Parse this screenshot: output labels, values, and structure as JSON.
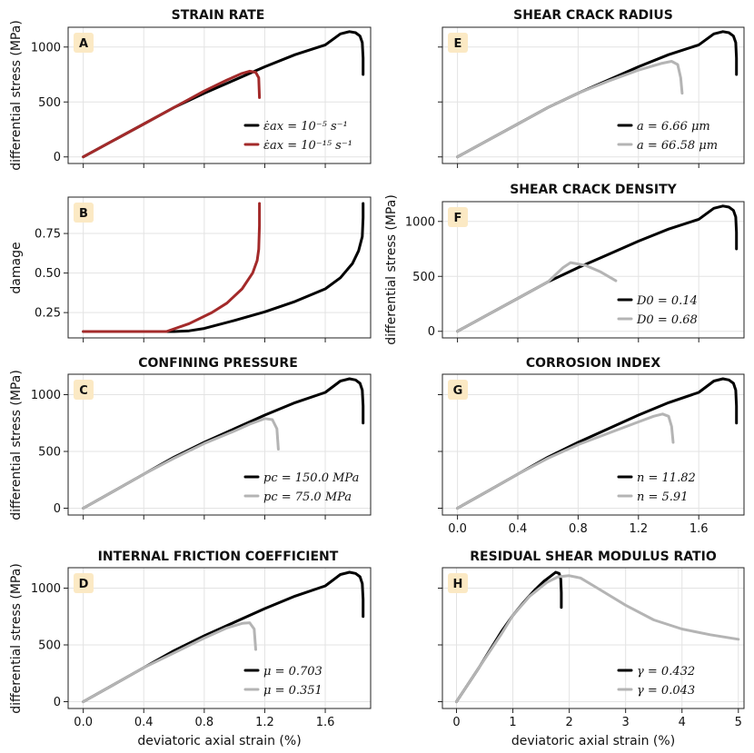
{
  "figure": {
    "colors": {
      "black": "#000000",
      "red": "#a32a2a",
      "gray": "#b4b4b4",
      "badge": "#fbe9c4"
    },
    "shared_xlabel": "deviatoric axial strain (%)",
    "shared_ylabel_stress": "differential stress (MPa)",
    "shared_ylabel_damage": "damage"
  },
  "chart_data": [
    {
      "id": "A",
      "type": "line",
      "title": "STRAIN RATE",
      "badge": "A",
      "ylabel": "differential stress (MPa)",
      "xlabel": "",
      "xlim": [
        -0.1,
        1.9
      ],
      "ylim": [
        -60,
        1180
      ],
      "xticks": [
        0,
        0.4,
        0.8,
        1.2,
        1.6
      ],
      "xtick_labels": [],
      "yticks": [
        0,
        500,
        1000
      ],
      "ytick_labels": [
        "0",
        "500",
        "1000"
      ],
      "series": [
        {
          "name": "ε̇ax = 10⁻⁵ s⁻¹",
          "color": "#000000",
          "x": [
            0,
            0.2,
            0.4,
            0.6,
            0.8,
            1.0,
            1.2,
            1.4,
            1.6,
            1.7,
            1.76,
            1.8,
            1.83,
            1.845,
            1.85,
            1.85
          ],
          "y": [
            0,
            150,
            300,
            450,
            580,
            700,
            820,
            930,
            1020,
            1120,
            1140,
            1130,
            1100,
            1040,
            900,
            750
          ]
        },
        {
          "name": "ε̇ax = 10⁻¹⁵ s⁻¹",
          "color": "#a32a2a",
          "x": [
            0,
            0.2,
            0.4,
            0.6,
            0.8,
            0.95,
            1.05,
            1.1,
            1.14,
            1.16,
            1.165
          ],
          "y": [
            0,
            150,
            300,
            450,
            600,
            700,
            760,
            780,
            770,
            720,
            540
          ]
        }
      ]
    },
    {
      "id": "B",
      "type": "line",
      "title": "",
      "badge": "B",
      "ylabel": "damage",
      "xlabel": "",
      "xlim": [
        -0.1,
        1.9
      ],
      "ylim": [
        0.09,
        0.98
      ],
      "xticks": [
        0,
        0.4,
        0.8,
        1.2,
        1.6
      ],
      "xtick_labels": [],
      "yticks": [
        0.25,
        0.5,
        0.75
      ],
      "ytick_labels": [
        "0.25",
        "0.50",
        "0.75"
      ],
      "series": [
        {
          "name": "ε̇ax = 10⁻⁵ s⁻¹",
          "color": "#000000",
          "x": [
            0,
            0.4,
            0.6,
            0.7,
            0.8,
            1.0,
            1.2,
            1.4,
            1.6,
            1.7,
            1.78,
            1.82,
            1.845,
            1.85,
            1.85
          ],
          "y": [
            0.13,
            0.13,
            0.13,
            0.135,
            0.15,
            0.2,
            0.255,
            0.32,
            0.4,
            0.47,
            0.56,
            0.64,
            0.73,
            0.85,
            0.94
          ]
        },
        {
          "name": "ε̇ax = 10⁻¹⁵ s⁻¹",
          "color": "#a32a2a",
          "x": [
            0,
            0.3,
            0.55,
            0.7,
            0.85,
            0.95,
            1.05,
            1.12,
            1.15,
            1.16,
            1.165,
            1.165
          ],
          "y": [
            0.13,
            0.13,
            0.13,
            0.18,
            0.25,
            0.31,
            0.4,
            0.5,
            0.58,
            0.65,
            0.8,
            0.94
          ]
        }
      ]
    },
    {
      "id": "C",
      "type": "line",
      "title": "CONFINING PRESSURE",
      "badge": "C",
      "ylabel": "differential stress (MPa)",
      "xlabel": "",
      "xlim": [
        -0.1,
        1.9
      ],
      "ylim": [
        -60,
        1180
      ],
      "xticks": [
        0,
        0.4,
        0.8,
        1.2,
        1.6
      ],
      "xtick_labels": [],
      "yticks": [
        0,
        500,
        1000
      ],
      "ytick_labels": [
        "0",
        "500",
        "1000"
      ],
      "series": [
        {
          "name": "pc = 150.0 MPa",
          "color": "#000000",
          "x": [
            0,
            0.2,
            0.4,
            0.6,
            0.8,
            1.0,
            1.2,
            1.4,
            1.6,
            1.7,
            1.76,
            1.8,
            1.83,
            1.845,
            1.85,
            1.85
          ],
          "y": [
            0,
            150,
            300,
            450,
            580,
            700,
            820,
            930,
            1020,
            1120,
            1140,
            1130,
            1100,
            1040,
            900,
            750
          ]
        },
        {
          "name": "pc = 75.0 MPa",
          "color": "#b4b4b4",
          "x": [
            0,
            0.2,
            0.4,
            0.6,
            0.8,
            1.0,
            1.1,
            1.2,
            1.25,
            1.28,
            1.29
          ],
          "y": [
            0,
            150,
            300,
            440,
            570,
            680,
            740,
            790,
            780,
            700,
            520
          ]
        }
      ]
    },
    {
      "id": "D",
      "type": "line",
      "title": "INTERNAL FRICTION COEFFICIENT",
      "badge": "D",
      "ylabel": "differential stress (MPa)",
      "xlabel": "deviatoric axial strain (%)",
      "xlim": [
        -0.1,
        1.9
      ],
      "ylim": [
        -60,
        1180
      ],
      "xticks": [
        0,
        0.4,
        0.8,
        1.2,
        1.6
      ],
      "xtick_labels": [
        "0.0",
        "0.4",
        "0.8",
        "1.2",
        "1.6"
      ],
      "yticks": [
        0,
        500,
        1000
      ],
      "ytick_labels": [
        "0",
        "500",
        "1000"
      ],
      "series": [
        {
          "name": "μ = 0.703",
          "color": "#000000",
          "x": [
            0,
            0.2,
            0.4,
            0.6,
            0.8,
            1.0,
            1.2,
            1.4,
            1.6,
            1.7,
            1.76,
            1.8,
            1.83,
            1.845,
            1.85,
            1.85
          ],
          "y": [
            0,
            150,
            300,
            450,
            580,
            700,
            820,
            930,
            1020,
            1120,
            1140,
            1130,
            1100,
            1040,
            900,
            750
          ]
        },
        {
          "name": "μ = 0.351",
          "color": "#b4b4b4",
          "x": [
            0,
            0.2,
            0.4,
            0.6,
            0.8,
            0.95,
            1.05,
            1.1,
            1.13,
            1.14
          ],
          "y": [
            0,
            150,
            300,
            430,
            560,
            650,
            690,
            695,
            640,
            460
          ]
        }
      ]
    },
    {
      "id": "E",
      "type": "line",
      "title": "SHEAR CRACK RADIUS",
      "badge": "E",
      "ylabel": "",
      "xlabel": "",
      "xlim": [
        -0.1,
        1.9
      ],
      "ylim": [
        -60,
        1180
      ],
      "xticks": [
        0,
        0.4,
        0.8,
        1.2,
        1.6
      ],
      "xtick_labels": [],
      "yticks": [
        0,
        500,
        1000
      ],
      "ytick_labels": [],
      "series": [
        {
          "name": "a = 6.66 μm",
          "color": "#000000",
          "x": [
            0,
            0.2,
            0.4,
            0.6,
            0.8,
            1.0,
            1.2,
            1.4,
            1.6,
            1.7,
            1.76,
            1.8,
            1.83,
            1.845,
            1.85,
            1.85
          ],
          "y": [
            0,
            150,
            300,
            450,
            580,
            700,
            820,
            930,
            1020,
            1120,
            1140,
            1130,
            1100,
            1040,
            900,
            750
          ]
        },
        {
          "name": "a = 66.58 μm",
          "color": "#b4b4b4",
          "x": [
            0,
            0.2,
            0.4,
            0.6,
            0.8,
            1.0,
            1.2,
            1.35,
            1.42,
            1.46,
            1.48,
            1.49
          ],
          "y": [
            0,
            150,
            300,
            450,
            580,
            690,
            790,
            850,
            870,
            840,
            720,
            580
          ]
        }
      ]
    },
    {
      "id": "F",
      "type": "line",
      "title": "SHEAR CRACK DENSITY",
      "badge": "F",
      "ylabel": "differential stress (MPa)",
      "xlabel": "",
      "xlim": [
        -0.1,
        1.9
      ],
      "ylim": [
        -60,
        1180
      ],
      "xticks": [
        0,
        0.4,
        0.8,
        1.2,
        1.6
      ],
      "xtick_labels": [],
      "yticks": [
        0,
        500,
        1000
      ],
      "ytick_labels": [
        "0",
        "500",
        "1000"
      ],
      "series": [
        {
          "name": "D0 = 0.14",
          "color": "#000000",
          "x": [
            0,
            0.2,
            0.4,
            0.6,
            0.8,
            1.0,
            1.2,
            1.4,
            1.6,
            1.7,
            1.76,
            1.8,
            1.83,
            1.845,
            1.85,
            1.85
          ],
          "y": [
            0,
            150,
            300,
            450,
            580,
            700,
            820,
            930,
            1020,
            1120,
            1140,
            1130,
            1100,
            1040,
            900,
            750
          ]
        },
        {
          "name": "D0 = 0.68",
          "color": "#b4b4b4",
          "x": [
            0,
            0.2,
            0.4,
            0.6,
            0.7,
            0.75,
            0.85,
            0.95,
            1.05
          ],
          "y": [
            0,
            150,
            300,
            450,
            580,
            625,
            600,
            540,
            460
          ]
        }
      ]
    },
    {
      "id": "G",
      "type": "line",
      "title": "CORROSION INDEX",
      "badge": "G",
      "ylabel": "",
      "xlabel": "",
      "xlim": [
        -0.1,
        1.9
      ],
      "ylim": [
        -60,
        1180
      ],
      "xticks": [
        0,
        0.4,
        0.8,
        1.2,
        1.6
      ],
      "xtick_labels": [
        "0.0",
        "0.4",
        "0.8",
        "1.2",
        "1.6"
      ],
      "yticks": [
        0,
        500,
        1000
      ],
      "ytick_labels": [],
      "series": [
        {
          "name": "n = 11.82",
          "color": "#000000",
          "x": [
            0,
            0.2,
            0.4,
            0.6,
            0.8,
            1.0,
            1.2,
            1.4,
            1.6,
            1.7,
            1.76,
            1.8,
            1.83,
            1.845,
            1.85,
            1.85
          ],
          "y": [
            0,
            150,
            300,
            450,
            580,
            700,
            820,
            930,
            1020,
            1120,
            1140,
            1130,
            1100,
            1040,
            900,
            750
          ]
        },
        {
          "name": "n = 5.91",
          "color": "#b4b4b4",
          "x": [
            0,
            0.2,
            0.4,
            0.6,
            0.8,
            1.0,
            1.2,
            1.3,
            1.36,
            1.4,
            1.42,
            1.43
          ],
          "y": [
            0,
            150,
            300,
            440,
            560,
            660,
            760,
            810,
            830,
            810,
            720,
            580
          ]
        }
      ]
    },
    {
      "id": "H",
      "type": "line",
      "title": "RESIDUAL SHEAR MODULUS RATIO",
      "badge": "H",
      "ylabel": "",
      "xlabel": "deviatoric axial strain (%)",
      "xlim": [
        -0.25,
        5.1
      ],
      "ylim": [
        -60,
        1180
      ],
      "xticks": [
        0,
        1,
        2,
        3,
        4,
        5
      ],
      "xtick_labels": [
        "0",
        "1",
        "2",
        "3",
        "4",
        "5"
      ],
      "yticks": [
        0,
        500,
        1000
      ],
      "ytick_labels": [],
      "series": [
        {
          "name": "γ = 0.432",
          "color": "#000000",
          "x": [
            0,
            0.4,
            0.8,
            1.0,
            1.2,
            1.4,
            1.55,
            1.68,
            1.76,
            1.82,
            1.85,
            1.86,
            1.86
          ],
          "y": [
            0,
            300,
            620,
            760,
            880,
            990,
            1060,
            1110,
            1140,
            1130,
            1080,
            960,
            830
          ]
        },
        {
          "name": "γ = 0.043",
          "color": "#b4b4b4",
          "x": [
            0,
            0.4,
            0.8,
            1.0,
            1.3,
            1.6,
            1.8,
            2.0,
            2.2,
            2.5,
            3.0,
            3.5,
            4.0,
            4.5,
            5.0
          ],
          "y": [
            0,
            300,
            600,
            760,
            930,
            1050,
            1100,
            1110,
            1090,
            1000,
            850,
            720,
            640,
            590,
            550
          ]
        }
      ]
    }
  ]
}
